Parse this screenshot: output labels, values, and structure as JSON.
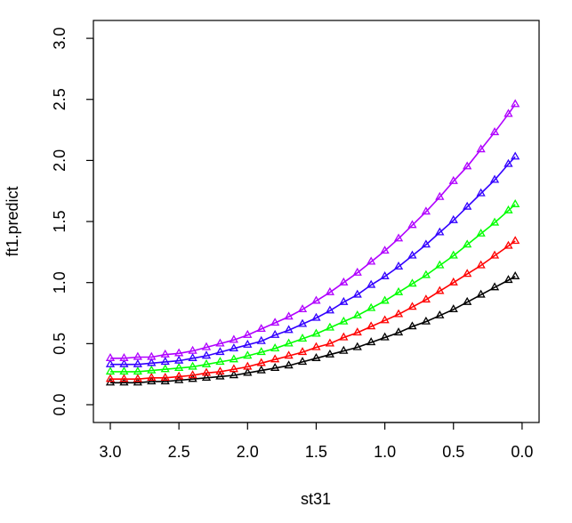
{
  "chart_data": {
    "type": "line",
    "title": "",
    "xlabel": "st31",
    "ylabel": "ft1.predict",
    "xlim": [
      3.0,
      0.0
    ],
    "ylim": [
      0.0,
      3.0
    ],
    "x_ticks": [
      "3.0",
      "2.5",
      "2.0",
      "1.5",
      "1.0",
      "0.5",
      "0.0"
    ],
    "y_ticks": [
      "0.0",
      "0.5",
      "1.0",
      "1.5",
      "2.0",
      "2.5",
      "3.0"
    ],
    "grid": false,
    "marker": "triangle-open",
    "x": [
      3.0,
      2.9,
      2.8,
      2.7,
      2.6,
      2.5,
      2.4,
      2.3,
      2.2,
      2.1,
      2.0,
      1.9,
      1.8,
      1.7,
      1.6,
      1.5,
      1.4,
      1.3,
      1.2,
      1.1,
      1.0,
      0.9,
      0.8,
      0.7,
      0.6,
      0.5,
      0.4,
      0.3,
      0.2,
      0.1,
      0.05
    ],
    "series": [
      {
        "name": "black",
        "color": "#000000",
        "values": [
          0.18,
          0.18,
          0.18,
          0.19,
          0.19,
          0.2,
          0.21,
          0.22,
          0.23,
          0.24,
          0.26,
          0.28,
          0.3,
          0.32,
          0.35,
          0.38,
          0.41,
          0.44,
          0.47,
          0.51,
          0.55,
          0.59,
          0.64,
          0.68,
          0.73,
          0.78,
          0.84,
          0.9,
          0.96,
          1.02,
          1.05
        ]
      },
      {
        "name": "red",
        "color": "#ff0000",
        "values": [
          0.21,
          0.21,
          0.21,
          0.22,
          0.22,
          0.23,
          0.24,
          0.26,
          0.27,
          0.29,
          0.31,
          0.34,
          0.37,
          0.4,
          0.43,
          0.47,
          0.5,
          0.55,
          0.59,
          0.64,
          0.69,
          0.74,
          0.8,
          0.86,
          0.93,
          1.0,
          1.07,
          1.14,
          1.22,
          1.3,
          1.34
        ]
      },
      {
        "name": "green",
        "color": "#00ff00",
        "values": [
          0.27,
          0.27,
          0.27,
          0.28,
          0.29,
          0.3,
          0.31,
          0.33,
          0.35,
          0.37,
          0.4,
          0.43,
          0.46,
          0.5,
          0.54,
          0.58,
          0.63,
          0.68,
          0.73,
          0.79,
          0.85,
          0.92,
          0.99,
          1.06,
          1.14,
          1.22,
          1.31,
          1.4,
          1.49,
          1.59,
          1.64
        ]
      },
      {
        "name": "blue",
        "color": "#3300ff",
        "values": [
          0.33,
          0.33,
          0.33,
          0.34,
          0.35,
          0.36,
          0.38,
          0.4,
          0.43,
          0.46,
          0.49,
          0.52,
          0.57,
          0.61,
          0.66,
          0.71,
          0.77,
          0.84,
          0.9,
          0.98,
          1.05,
          1.13,
          1.22,
          1.31,
          1.41,
          1.51,
          1.62,
          1.73,
          1.84,
          1.97,
          2.03
        ]
      },
      {
        "name": "purple",
        "color": "#b000ff",
        "values": [
          0.38,
          0.38,
          0.39,
          0.39,
          0.41,
          0.42,
          0.44,
          0.47,
          0.5,
          0.53,
          0.57,
          0.62,
          0.67,
          0.72,
          0.78,
          0.85,
          0.92,
          1.0,
          1.08,
          1.17,
          1.26,
          1.36,
          1.47,
          1.58,
          1.7,
          1.83,
          1.95,
          2.09,
          2.23,
          2.38,
          2.46
        ]
      }
    ]
  }
}
